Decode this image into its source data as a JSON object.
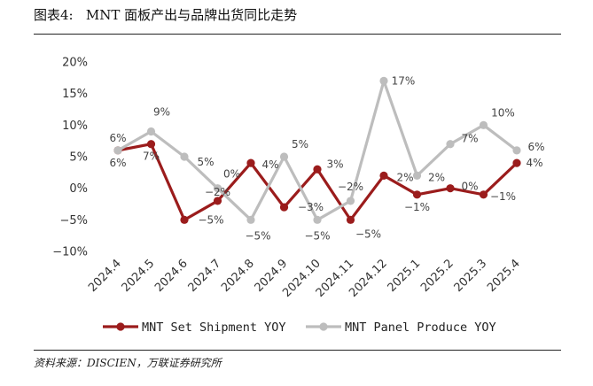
{
  "figure": {
    "title": "图表4:   MNT 面板产出与品牌出货同比走势",
    "source": "资料来源：DISCIEN，万联证券研究所"
  },
  "chart_data": {
    "type": "line",
    "x": [
      "2024.4",
      "2024.5",
      "2024.6",
      "2024.7",
      "2024.8",
      "2024.9",
      "2024.10",
      "2024.11",
      "2024.12",
      "2025.1",
      "2025.2",
      "2025.3",
      "2025.4"
    ],
    "ylim": [
      -10,
      20
    ],
    "yticks": [
      -10,
      -5,
      0,
      5,
      10,
      15,
      20
    ],
    "ytick_labels": [
      "−10%",
      "−5%",
      "0%",
      "5%",
      "10%",
      "15%",
      "20%"
    ],
    "grid": false,
    "legend_position": "bottom",
    "series": [
      {
        "name": "MNT Set Shipment YOY",
        "color": "#9b1c1c",
        "values": [
          6,
          7,
          -5,
          -2,
          4,
          -3,
          3,
          -5,
          2,
          -1,
          0,
          -1,
          4
        ],
        "labels": [
          "6%",
          "7%",
          "−5%",
          "−2%",
          "4%",
          "−3%",
          "3%",
          "−5%",
          "2%",
          "−1%",
          "0%",
          "−1%",
          "4%"
        ]
      },
      {
        "name": "MNT Panel Produce YOY",
        "color": "#bdbdbd",
        "values": [
          6,
          9,
          5,
          0,
          -5,
          5,
          -5,
          -2,
          17,
          2,
          7,
          10,
          6
        ],
        "labels": [
          "6%",
          "9%",
          "5%",
          "0%",
          "−5%",
          "5%",
          "−5%",
          "−2%",
          "17%",
          "2%",
          "7%",
          "10%",
          "6%"
        ]
      }
    ]
  }
}
